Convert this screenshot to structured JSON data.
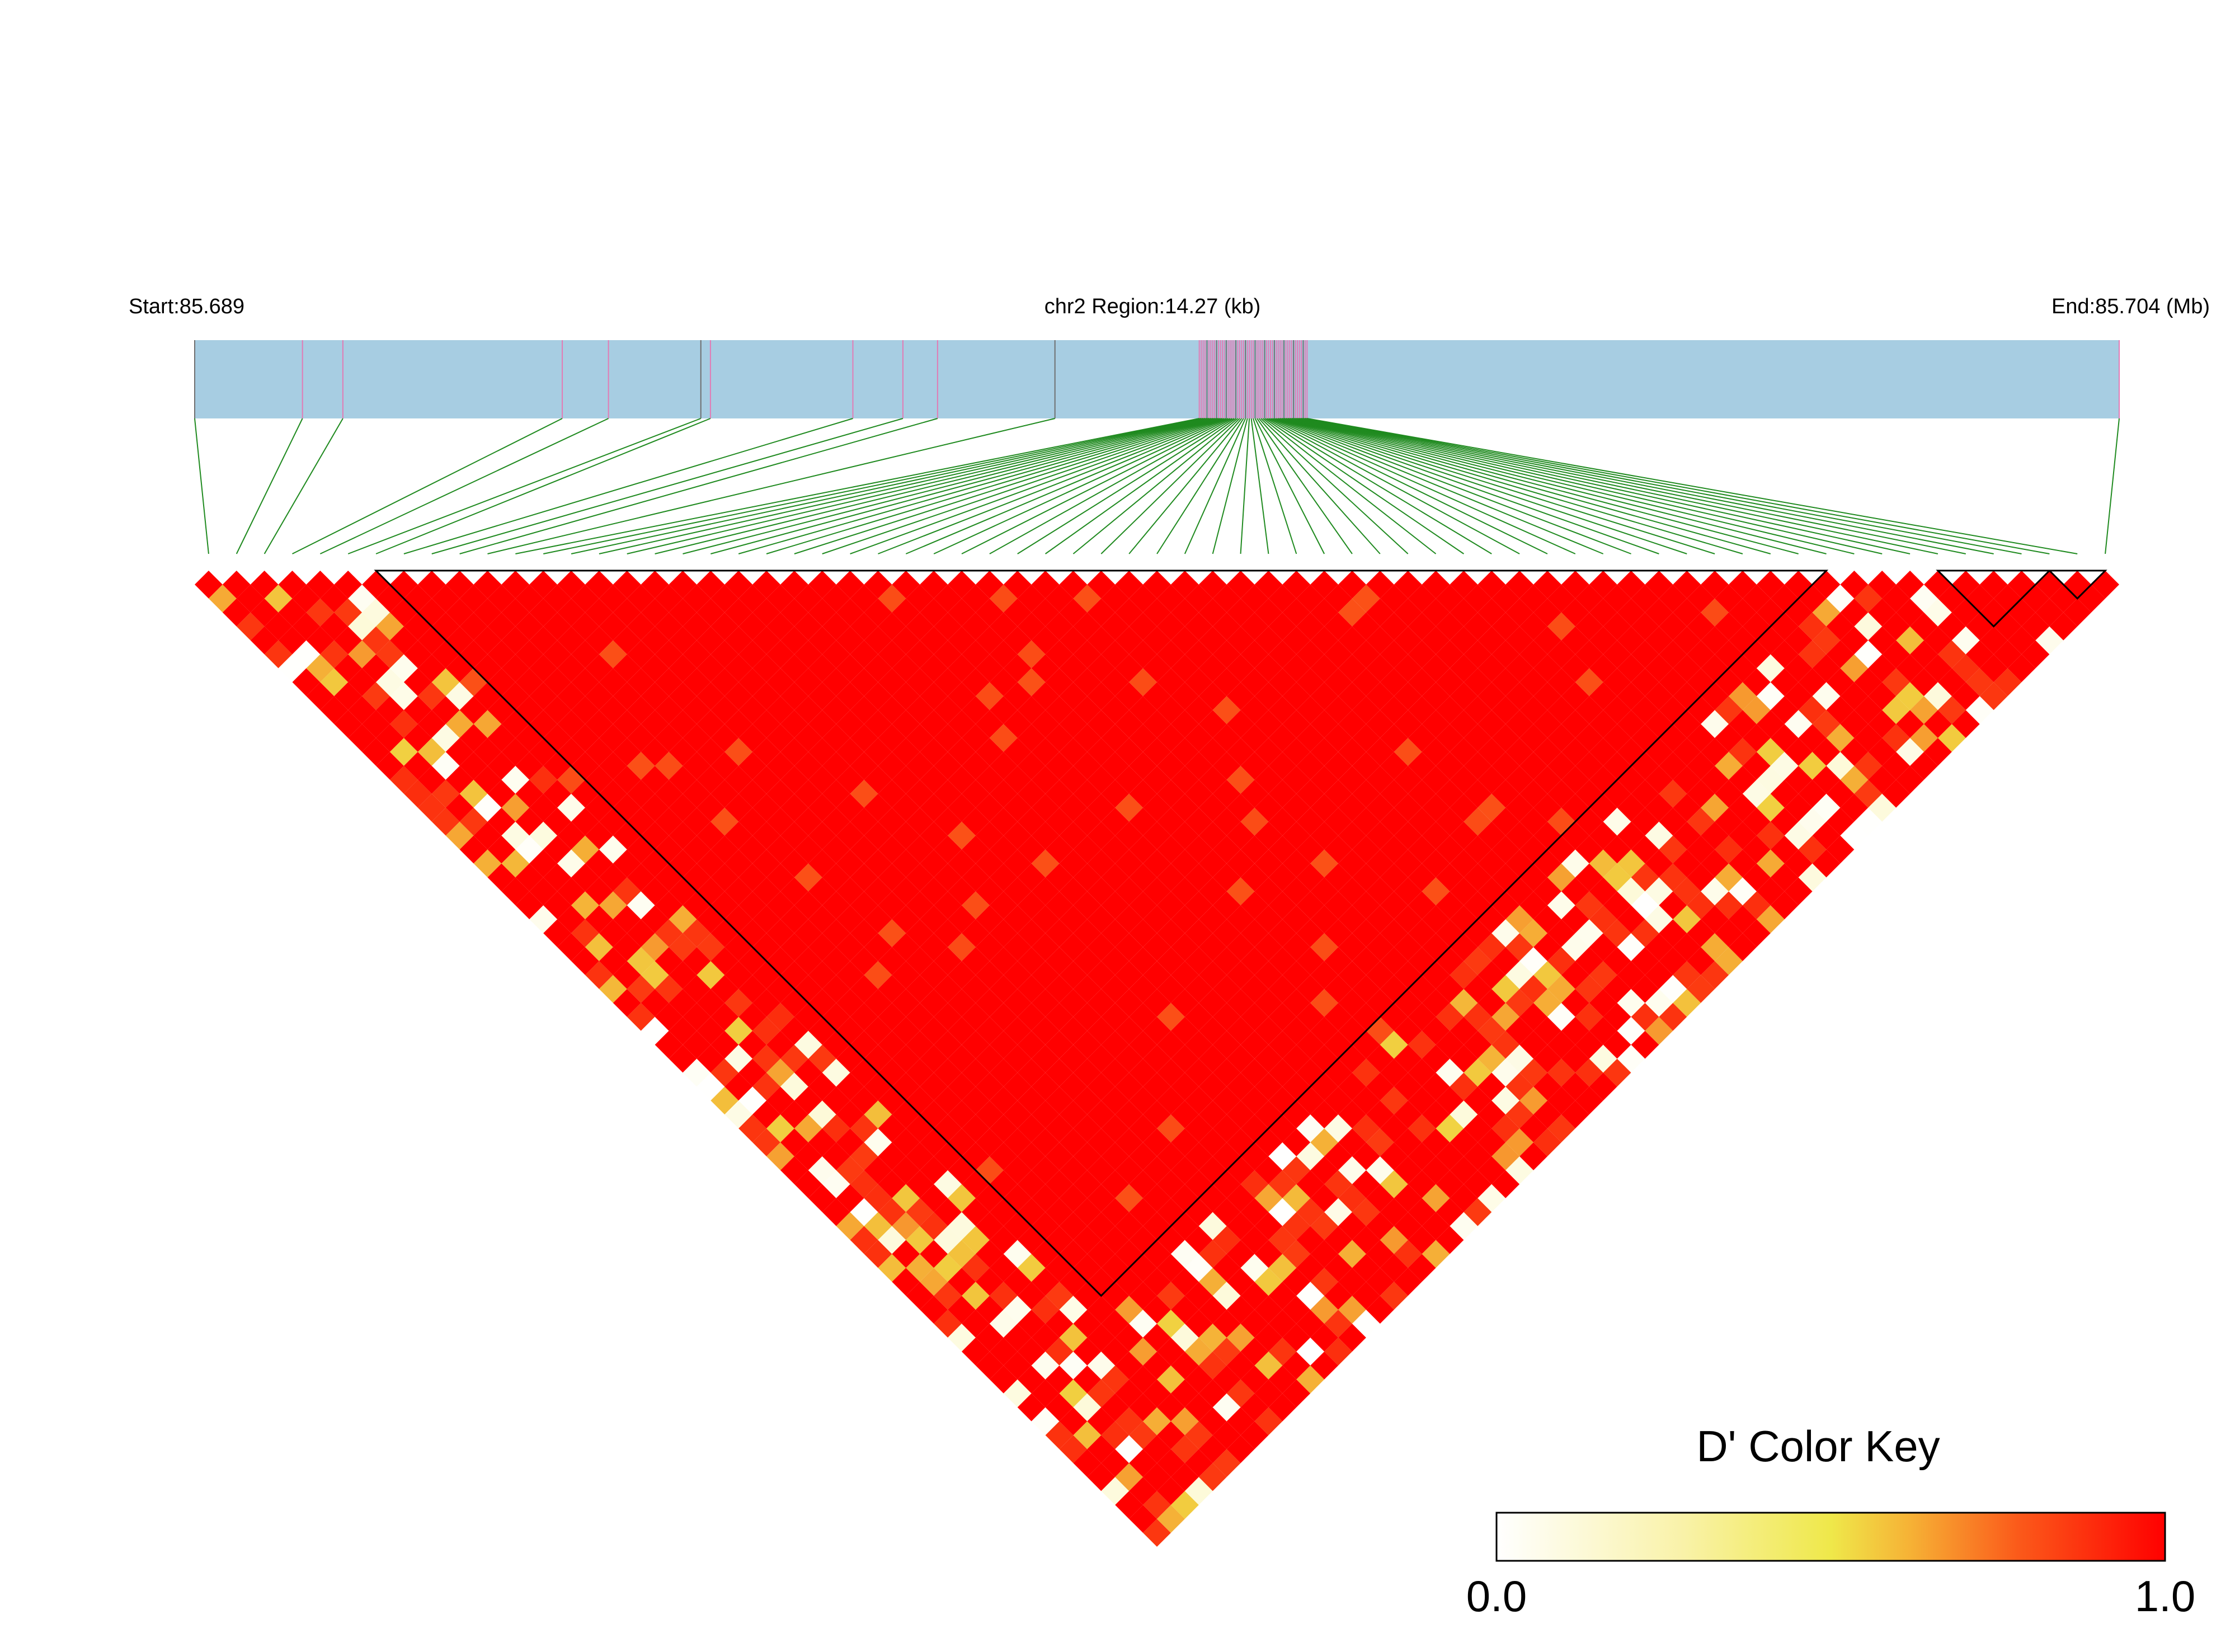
{
  "header": {
    "start_label": "Start:85.689",
    "region_label": "chr2 Region:14.27 (kb)",
    "end_label": "End:85.704 (Mb)"
  },
  "colors": {
    "gene_bar": "#a7cde2",
    "snp_mark": "#e27bb5",
    "connector": "#1f8a1f",
    "high": "#ff0000",
    "low": "#ffffff"
  },
  "chart_data": {
    "type": "heatmap",
    "description_hidden": true,
    "region_start_mb": 85.689,
    "region_end_mb": 85.704,
    "chromosome": "chr2",
    "region_kb": 14.27,
    "n_snps": 69,
    "snp_positions_fraction": [
      0.0,
      0.056,
      0.077,
      0.191,
      0.215,
      0.263,
      0.268,
      0.342,
      0.368,
      0.386,
      0.447,
      0.522,
      0.523,
      0.524,
      0.525,
      0.526,
      0.527,
      0.528,
      0.529,
      0.53,
      0.531,
      0.532,
      0.533,
      0.534,
      0.535,
      0.536,
      0.537,
      0.538,
      0.539,
      0.54,
      0.541,
      0.542,
      0.543,
      0.544,
      0.545,
      0.546,
      0.547,
      0.548,
      0.549,
      0.55,
      0.551,
      0.552,
      0.553,
      0.554,
      0.555,
      0.556,
      0.557,
      0.558,
      0.559,
      0.56,
      0.561,
      0.562,
      0.563,
      0.564,
      0.565,
      0.566,
      0.567,
      0.568,
      0.569,
      0.57,
      0.571,
      0.572,
      0.573,
      0.574,
      0.575,
      0.576,
      0.577,
      0.578,
      1.0
    ],
    "blocks": [
      [
        6,
        58
      ],
      [
        62,
        66
      ],
      [
        66,
        68
      ]
    ],
    "key": {
      "title": "D' Color Key",
      "min_label": "0.0",
      "max_label": "1.0",
      "min": 0.0,
      "max": 1.0
    }
  }
}
